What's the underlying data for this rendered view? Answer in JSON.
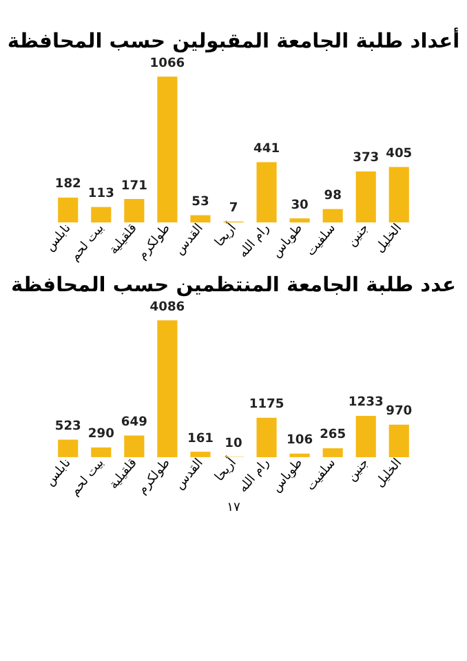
{
  "chart_data": [
    {
      "type": "bar",
      "title": "أعداد طلبة الجامعة المقبولين حسب المحافظة",
      "categories": [
        "نابلس",
        "بيت لحم",
        "قلقيلية",
        "طولكرم",
        "القدس",
        "أريحا",
        "رام الله",
        "طوباس",
        "سلفيت",
        "جنين",
        "الخليل"
      ],
      "values": [
        182,
        113,
        171,
        1066,
        53,
        7,
        441,
        30,
        98,
        373,
        405
      ],
      "color": "#f5b915",
      "data_labels": true,
      "tick_labels": "x"
    },
    {
      "type": "bar",
      "title": "عدد طلبة الجامعة المنتظمين حسب المحافظة",
      "categories": [
        "نابلس",
        "بيت لحم",
        "قلقيلية",
        "طولكرم",
        "القدس",
        "أريحا",
        "رام الله",
        "طوباس",
        "سلفيت",
        "جنين",
        "الخليل"
      ],
      "values": [
        523,
        290,
        649,
        4086,
        161,
        10,
        1175,
        106,
        265,
        1233,
        970
      ],
      "color": "#f5b915",
      "data_labels": true,
      "tick_labels": "x",
      "annotations": [
        "١٧"
      ]
    }
  ]
}
